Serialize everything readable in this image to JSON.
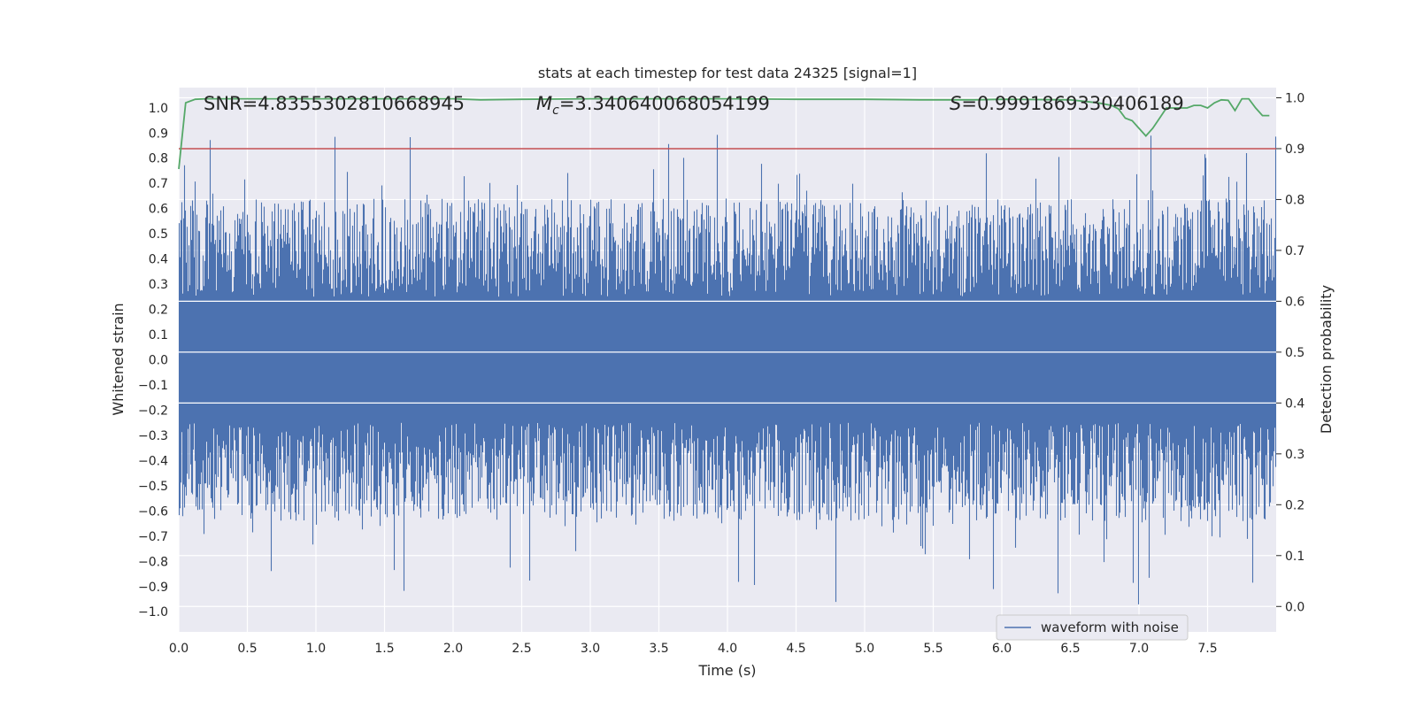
{
  "chart_data": {
    "type": "line",
    "title": "stats at each timestep for test data 24325 [signal=1]",
    "xlabel": "Time (s)",
    "ylabel_left": "Whitened strain",
    "ylabel_right": "Detection probability",
    "xlim": [
      0.0,
      8.0
    ],
    "ylim_left": [
      -1.08,
      1.08
    ],
    "ylim_right": [
      -0.05,
      1.02
    ],
    "grid": true,
    "x_ticks": [
      "0.0",
      "0.5",
      "1.0",
      "1.5",
      "2.0",
      "2.5",
      "3.0",
      "3.5",
      "4.0",
      "4.5",
      "5.0",
      "5.5",
      "6.0",
      "6.5",
      "7.0",
      "7.5"
    ],
    "x_tick_values": [
      0.0,
      0.5,
      1.0,
      1.5,
      2.0,
      2.5,
      3.0,
      3.5,
      4.0,
      4.5,
      5.0,
      5.5,
      6.0,
      6.5,
      7.0,
      7.5
    ],
    "y_ticks_left": [
      "1.0",
      "0.9",
      "0.8",
      "0.7",
      "0.6",
      "0.5",
      "0.4",
      "0.3",
      "0.2",
      "0.1",
      "0.0",
      "−0.1",
      "−0.2",
      "−0.3",
      "−0.4",
      "−0.5",
      "−0.6",
      "−0.7",
      "−0.8",
      "−0.9",
      "−1.0"
    ],
    "y_tick_values_left": [
      1.0,
      0.9,
      0.8,
      0.7,
      0.6,
      0.5,
      0.4,
      0.3,
      0.2,
      0.1,
      0.0,
      -0.1,
      -0.2,
      -0.3,
      -0.4,
      -0.5,
      -0.6,
      -0.7,
      -0.8,
      -0.9,
      -1.0
    ],
    "y_ticks_right": [
      "1.0",
      "0.9",
      "0.8",
      "0.7",
      "0.6",
      "0.5",
      "0.4",
      "0.3",
      "0.2",
      "0.1",
      "0.0"
    ],
    "y_tick_values_right": [
      1.0,
      0.9,
      0.8,
      0.7,
      0.6,
      0.5,
      0.4,
      0.3,
      0.2,
      0.1,
      0.0
    ],
    "threshold": 0.9,
    "annotations": {
      "snr": "SNR=4.8355302810668945",
      "mc_symbol": "M",
      "mc_sub": "c",
      "mc_value": "=3.340640068054199",
      "s_symbol": "S",
      "s_value": "=0.9991869330406189"
    },
    "legend": {
      "label": "waveform with noise",
      "position": "lower-right"
    },
    "series": [
      {
        "name": "waveform with noise",
        "color": "#4c72b0",
        "noise_envelope": {
          "core": 0.25,
          "typical_peak": 0.55,
          "max_abs": 1.0
        }
      },
      {
        "name": "detection probability",
        "color": "#55a868",
        "x": [
          0.0,
          0.05,
          0.12,
          0.2,
          0.5,
          1.0,
          1.5,
          2.0,
          2.2,
          2.5,
          3.0,
          3.5,
          4.0,
          4.5,
          5.0,
          5.4,
          5.8,
          6.0,
          6.5,
          6.7,
          6.8,
          6.85,
          6.9,
          6.95,
          7.0,
          7.05,
          7.1,
          7.15,
          7.2,
          7.3,
          7.35,
          7.4,
          7.45,
          7.5,
          7.55,
          7.6,
          7.65,
          7.7,
          7.75,
          7.8,
          7.85,
          7.9,
          7.95
        ],
        "values": [
          0.86,
          0.99,
          0.997,
          0.998,
          0.998,
          0.998,
          0.998,
          0.998,
          0.996,
          0.997,
          0.998,
          0.998,
          0.998,
          0.997,
          0.997,
          0.996,
          0.996,
          0.997,
          0.996,
          0.99,
          0.985,
          0.978,
          0.96,
          0.955,
          0.94,
          0.925,
          0.94,
          0.96,
          0.98,
          0.98,
          0.98,
          0.985,
          0.985,
          0.98,
          0.99,
          0.996,
          0.995,
          0.975,
          0.998,
          0.998,
          0.98,
          0.965,
          0.965
        ]
      },
      {
        "name": "threshold",
        "color": "#c44e52",
        "value": 0.9
      }
    ]
  }
}
